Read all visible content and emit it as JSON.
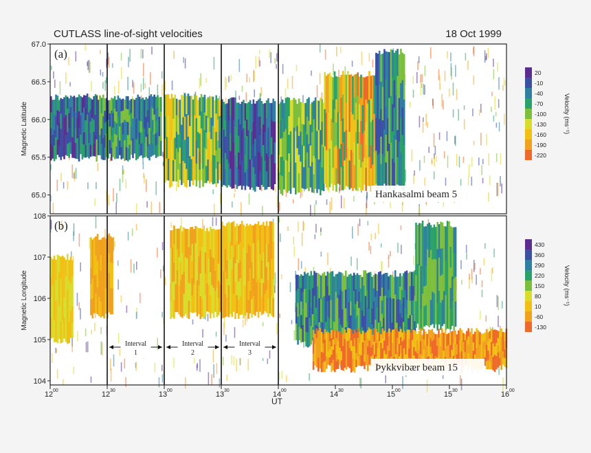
{
  "figure": {
    "title": "CUTLASS line-of-sight velocities",
    "date": "18 Oct 1999",
    "xlabel": "UT",
    "x_ticks": [
      {
        "h": "12",
        "m": "00"
      },
      {
        "h": "12",
        "m": "30"
      },
      {
        "h": "13",
        "m": "00"
      },
      {
        "h": "13",
        "m": "30"
      },
      {
        "h": "14",
        "m": "00"
      },
      {
        "h": "14",
        "m": "30"
      },
      {
        "h": "15",
        "m": "00"
      },
      {
        "h": "15",
        "m": "30"
      },
      {
        "h": "16",
        "m": "00"
      }
    ],
    "intervals": [
      {
        "label": "Interval",
        "num": "1",
        "start": 12.5,
        "end": 13.0
      },
      {
        "label": "Interval",
        "num": "2",
        "start": 13.0,
        "end": 13.5
      },
      {
        "label": "Interval",
        "num": "3",
        "start": 13.5,
        "end": 14.0
      }
    ]
  },
  "chart_data": [
    {
      "type": "heatmap",
      "panel_label": "(a)",
      "station_label": "Hankasalmi beam 5",
      "ylabel": "Magnetic Latitude",
      "xlim": [
        12.0,
        16.0
      ],
      "ylim": [
        64.75,
        67.0
      ],
      "y_ticks": [
        "65.0",
        "65.5",
        "66.0",
        "66.5",
        "67.0"
      ],
      "y_tick_values": [
        65.0,
        65.5,
        66.0,
        66.5,
        67.0
      ],
      "vertical_markers": [
        12.5,
        13.0,
        13.5,
        14.0
      ],
      "colorbar": {
        "label": "Velocity (ms⁻¹)",
        "ticks": [
          "20",
          "-10",
          "-40",
          "-70",
          "-100",
          "-130",
          "-160",
          "-190",
          "-220"
        ],
        "colors": [
          "#5b2d8e",
          "#3b4fa3",
          "#2f7fa0",
          "#2aa06a",
          "#7dbf3c",
          "#d9dc2a",
          "#f2c015",
          "#f0a21e",
          "#ee6a2a"
        ]
      },
      "bands": [
        {
          "x0": 12.0,
          "x1": 12.4,
          "y0": 65.5,
          "y1": 66.3,
          "colors": [
            "#3b4fa3",
            "#2f7fa0",
            "#2aa06a",
            "#5b2d8e"
          ]
        },
        {
          "x0": 12.4,
          "x1": 12.97,
          "y0": 65.5,
          "y1": 66.3,
          "colors": [
            "#2aa06a",
            "#2f7fa0",
            "#3b4fa3",
            "#7dbf3c"
          ]
        },
        {
          "x0": 13.0,
          "x1": 13.48,
          "y0": 65.15,
          "y1": 66.3,
          "colors": [
            "#2aa06a",
            "#7dbf3c",
            "#d9dc2a",
            "#f2c015",
            "#2f7fa0"
          ]
        },
        {
          "x0": 13.5,
          "x1": 13.97,
          "y0": 65.1,
          "y1": 66.25,
          "colors": [
            "#3b4fa3",
            "#2f7fa0",
            "#5b2d8e",
            "#2aa06a"
          ]
        },
        {
          "x0": 14.0,
          "x1": 14.4,
          "y0": 65.05,
          "y1": 66.25,
          "colors": [
            "#2aa06a",
            "#7dbf3c",
            "#2f7fa0",
            "#d9dc2a"
          ]
        },
        {
          "x0": 14.4,
          "x1": 14.85,
          "y0": 65.1,
          "y1": 66.6,
          "colors": [
            "#d9dc2a",
            "#f2c015",
            "#f0a21e",
            "#ee6a2a",
            "#7dbf3c",
            "#2aa06a"
          ]
        },
        {
          "x0": 14.85,
          "x1": 15.1,
          "y0": 65.1,
          "y1": 66.9,
          "colors": [
            "#2aa06a",
            "#2f7fa0",
            "#3b4fa3",
            "#7dbf3c"
          ]
        }
      ]
    },
    {
      "type": "heatmap",
      "panel_label": "(b)",
      "station_label": "Þykkvibær beam 15",
      "ylabel": "Magnetic Longitude",
      "xlim": [
        12.0,
        16.0
      ],
      "ylim": [
        103.9,
        108.0
      ],
      "y_ticks": [
        "104",
        "105",
        "106",
        "107",
        "108"
      ],
      "y_tick_values": [
        104,
        105,
        106,
        107,
        108
      ],
      "vertical_markers": [
        12.5,
        13.0,
        13.5,
        14.0
      ],
      "colorbar": {
        "label": "Velocity (ms⁻¹)",
        "ticks": [
          "430",
          "360",
          "290",
          "220",
          "150",
          "80",
          "10",
          "-60",
          "-130"
        ],
        "colors": [
          "#5b2d8e",
          "#3b4fa3",
          "#2f7fa0",
          "#2aa06a",
          "#7dbf3c",
          "#d9dc2a",
          "#f2c015",
          "#f0a21e",
          "#ee6a2a"
        ]
      },
      "bands": [
        {
          "x0": 12.0,
          "x1": 12.2,
          "y0": 105.0,
          "y1": 107.0,
          "colors": [
            "#f2c015",
            "#d9dc2a"
          ]
        },
        {
          "x0": 12.35,
          "x1": 12.55,
          "y0": 105.6,
          "y1": 107.5,
          "colors": [
            "#f2c015",
            "#f0a21e"
          ]
        },
        {
          "x0": 13.05,
          "x1": 13.5,
          "y0": 105.6,
          "y1": 107.7,
          "colors": [
            "#f2c015",
            "#d9dc2a",
            "#f0a21e"
          ]
        },
        {
          "x0": 13.5,
          "x1": 13.95,
          "y0": 105.6,
          "y1": 107.8,
          "colors": [
            "#f2c015",
            "#d9dc2a",
            "#f0a21e"
          ]
        },
        {
          "x0": 14.15,
          "x1": 15.2,
          "y0": 104.9,
          "y1": 106.6,
          "colors": [
            "#2aa06a",
            "#2f7fa0",
            "#3b4fa3",
            "#7dbf3c"
          ]
        },
        {
          "x0": 15.2,
          "x1": 15.55,
          "y0": 105.3,
          "y1": 107.8,
          "colors": [
            "#2aa06a",
            "#7dbf3c",
            "#2f7fa0"
          ]
        },
        {
          "x0": 14.3,
          "x1": 16.0,
          "y0": 104.3,
          "y1": 105.2,
          "colors": [
            "#f2c015",
            "#f0a21e",
            "#ee6a2a"
          ]
        }
      ]
    }
  ]
}
